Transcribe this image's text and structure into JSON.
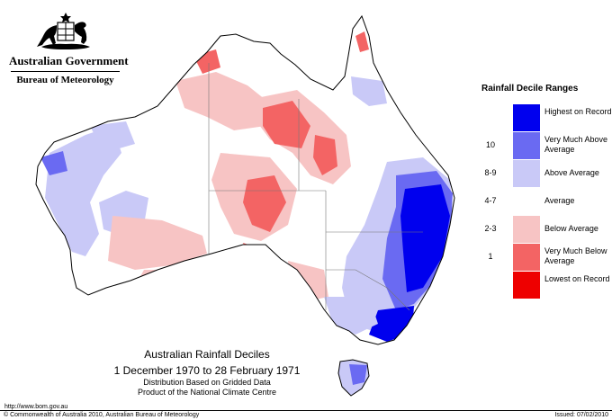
{
  "header": {
    "government": "Australian Government",
    "bureau": "Bureau of Meteorology",
    "crest": "commonwealth-coat-of-arms"
  },
  "legend": {
    "title": "Rainfall Decile Ranges",
    "rows": [
      {
        "range": "",
        "label": "Highest on Record",
        "color": "#0000ee"
      },
      {
        "range": "10",
        "label": "Very Much Above Average",
        "color": "#6a6af2"
      },
      {
        "range": "8-9",
        "label": "Above Average",
        "color": "#c9c9f7"
      },
      {
        "range": "4-7",
        "label": "Average",
        "color": "#ffffff"
      },
      {
        "range": "2-3",
        "label": "Below Average",
        "color": "#f7c4c4"
      },
      {
        "range": "1",
        "label": "Very Much Below Average",
        "color": "#f36464"
      },
      {
        "range": "",
        "label": "Lowest on Record",
        "color": "#ee0000"
      }
    ]
  },
  "caption": {
    "title": "Australian Rainfall Deciles",
    "period": "1 December 1970 to 28 February 1971",
    "line1": "Distribution Based on Gridded Data",
    "line2": "Product of the National Climate Centre"
  },
  "footer": {
    "url": "http://www.bom.gov.au",
    "copyright": "© Commonwealth of Australia 2010, Australian Bureau of Meteorology",
    "issued": "Issued: 07/02/2010"
  }
}
